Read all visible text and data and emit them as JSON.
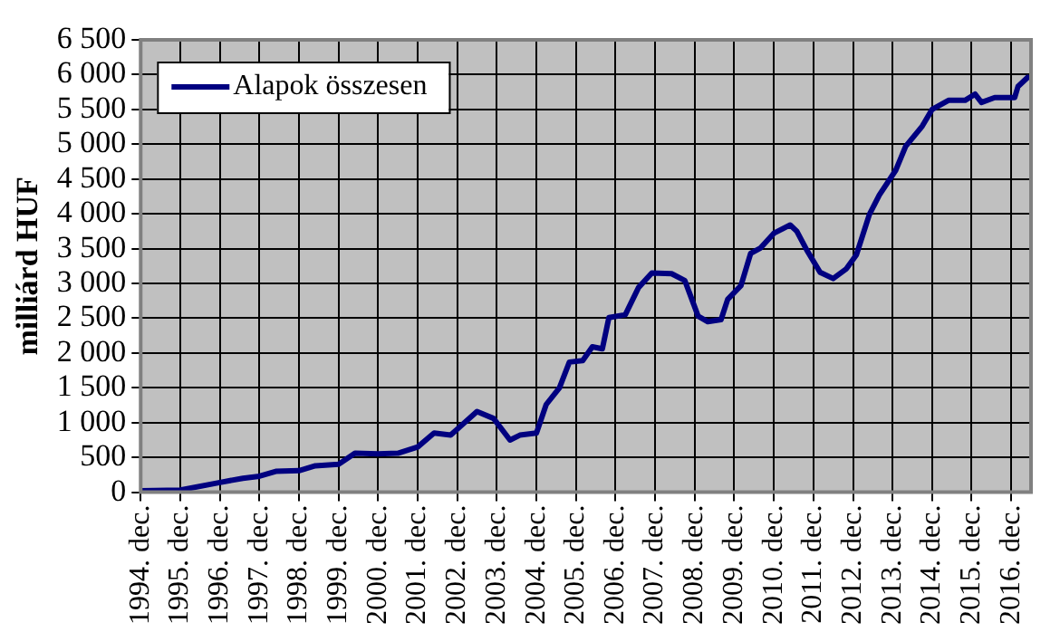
{
  "chart_data": {
    "type": "line",
    "ylabel": "milliárd HUF",
    "legend": "top left",
    "grid": true,
    "marker": "none",
    "line_style": "solid",
    "xlim": [
      "1994-12",
      "2017-06"
    ],
    "xticks": [
      {
        "value": "1994-12",
        "label": "1994. dec."
      },
      {
        "value": "1995-12",
        "label": "1995. dec."
      },
      {
        "value": "1996-12",
        "label": "1996. dec."
      },
      {
        "value": "1997-12",
        "label": "1997. dec."
      },
      {
        "value": "1998-12",
        "label": "1998. dec."
      },
      {
        "value": "1999-12",
        "label": "1999. dec."
      },
      {
        "value": "2000-12",
        "label": "2000. dec."
      },
      {
        "value": "2001-12",
        "label": "2001. dec."
      },
      {
        "value": "2002-12",
        "label": "2002. dec."
      },
      {
        "value": "2003-12",
        "label": "2003. dec."
      },
      {
        "value": "2004-12",
        "label": "2004. dec."
      },
      {
        "value": "2005-12",
        "label": "2005. dec."
      },
      {
        "value": "2006-12",
        "label": "2006. dec."
      },
      {
        "value": "2007-12",
        "label": "2007. dec."
      },
      {
        "value": "2008-12",
        "label": "2008. dec."
      },
      {
        "value": "2009-12",
        "label": "2009. dec."
      },
      {
        "value": "2010-12",
        "label": "2010. dec."
      },
      {
        "value": "2011-12",
        "label": "2011. dec."
      },
      {
        "value": "2012-12",
        "label": "2012. dec."
      },
      {
        "value": "2013-12",
        "label": "2013. dec."
      },
      {
        "value": "2014-12",
        "label": "2014. dec."
      },
      {
        "value": "2015-12",
        "label": "2015. dec."
      },
      {
        "value": "2016-12",
        "label": "2016. dec."
      }
    ],
    "ylim": [
      0,
      6500
    ],
    "yticks": [
      0,
      500,
      {
        "value": 1000,
        "label": "1 000"
      },
      {
        "value": 1500,
        "label": "1 500"
      },
      {
        "value": 2000,
        "label": "2 000"
      },
      {
        "value": 2500,
        "label": "2 500"
      },
      {
        "value": 3000,
        "label": "3 000"
      },
      {
        "value": 3500,
        "label": "3 500"
      },
      {
        "value": 4000,
        "label": "4 000"
      },
      {
        "value": 4500,
        "label": "4 500"
      },
      {
        "value": 5000,
        "label": "5 000"
      },
      {
        "value": 5500,
        "label": "5 500"
      },
      {
        "value": 6000,
        "label": "6 000"
      },
      {
        "value": 6500,
        "label": "6 500"
      }
    ],
    "series": [
      {
        "name": "Alapok összesen",
        "color": "#000080",
        "x": [
          "1994-12",
          "1995-12",
          "1996-12",
          "1997-07",
          "1997-12",
          "1998-05",
          "1998-12",
          "1999-05",
          "1999-12",
          "2000-05",
          "2000-12",
          "2001-06",
          "2001-12",
          "2002-05",
          "2002-10",
          "2003-06",
          "2003-11",
          "2004-04",
          "2004-07",
          "2004-12",
          "2005-03",
          "2005-07",
          "2005-10",
          "2006-02",
          "2006-05",
          "2006-08",
          "2006-10",
          "2007-03",
          "2007-07",
          "2007-11",
          "2008-05",
          "2008-09",
          "2009-01",
          "2009-04",
          "2009-08",
          "2009-10",
          "2010-02",
          "2010-05",
          "2010-08",
          "2010-12",
          "2011-05",
          "2011-07",
          "2011-10",
          "2012-02",
          "2012-06",
          "2012-10",
          "2013-01",
          "2013-05",
          "2013-08",
          "2014-01",
          "2014-04",
          "2014-09",
          "2014-12",
          "2015-05",
          "2015-10",
          "2016-01",
          "2016-03",
          "2016-07",
          "2017-01",
          "2017-02",
          "2017-05"
        ],
        "values": [
          20,
          30,
          140,
          200,
          230,
          300,
          310,
          380,
          400,
          560,
          550,
          560,
          650,
          850,
          820,
          1160,
          1060,
          750,
          820,
          850,
          1260,
          1500,
          1870,
          1890,
          2090,
          2060,
          2510,
          2550,
          2940,
          3150,
          3140,
          3040,
          2530,
          2450,
          2480,
          2770,
          2970,
          3430,
          3510,
          3720,
          3840,
          3750,
          3480,
          3160,
          3070,
          3210,
          3410,
          3990,
          4270,
          4630,
          4970,
          5260,
          5500,
          5630,
          5630,
          5720,
          5600,
          5670,
          5670,
          5830,
          5960
        ]
      }
    ]
  }
}
